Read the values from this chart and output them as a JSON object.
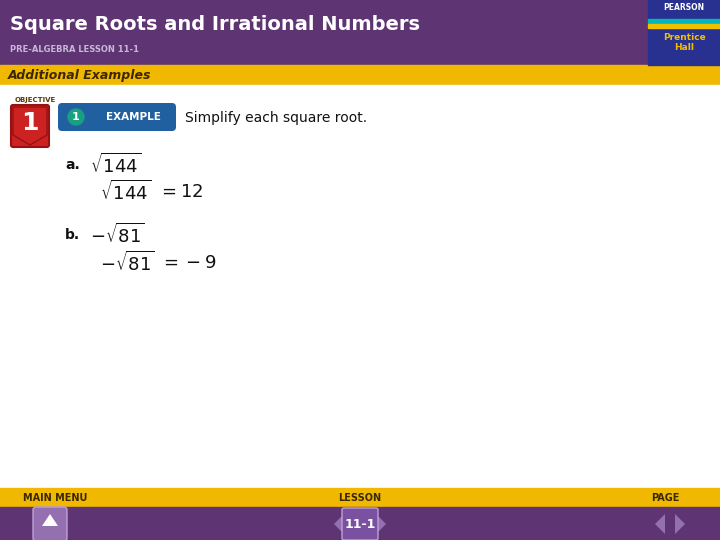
{
  "title": "Square Roots and Irrational Numbers",
  "subtitle": "PRE-ALGEBRA LESSON 11-1",
  "section_label": "Additional Examples",
  "objective_text": "OBJECTIVE",
  "example_instruction": "Simplify each square root.",
  "footer_left": "MAIN MENU",
  "footer_center": "LESSON",
  "footer_right": "PAGE",
  "footer_page_num": "11-1",
  "header_bg": "#5e3472",
  "header_title_color": "#ffffff",
  "header_subtitle_color": "#c8b8d8",
  "section_bar_bg": "#f0b800",
  "section_bar_text_color": "#3a2800",
  "body_bg": "#ffffff",
  "footer_bar_bg": "#f0b800",
  "footer_nav_bg": "#5e3472",
  "footer_text_color": "#3a2800",
  "objective_number_bg": "#cc2222",
  "example_badge_bg": "#2060a0",
  "body_text_color": "#111111",
  "label_color": "#111111",
  "pearson_box_bg": "#283090"
}
